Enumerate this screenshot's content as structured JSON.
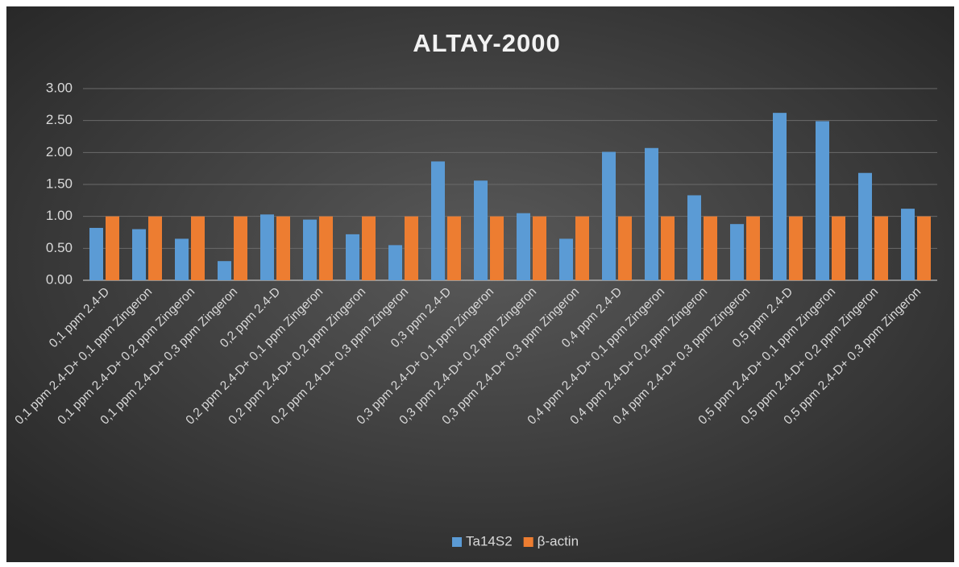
{
  "chart_data": {
    "type": "bar",
    "title": "ALTAY-2000",
    "categories": [
      "0,1 ppm 2.4-D",
      "0,1 ppm 2.4-D+ 0,1 ppm Zingeron",
      "0,1 ppm 2.4-D+ 0,2 ppm Zingeron",
      "0,1 ppm 2.4-D+ 0,3 ppm Zingeron",
      "0,2 ppm 2.4-D",
      "0,2 ppm 2.4-D+ 0,1 ppm Zingeron",
      "0,2 ppm 2.4-D+ 0,2 ppm Zingeron",
      "0,2 ppm 2.4-D+ 0,3 ppm Zingeron",
      "0,3 ppm 2.4-D",
      "0,3 ppm 2.4-D+ 0,1 ppm Zingeron",
      "0,3 ppm 2.4-D+ 0,2 ppm Zingeron",
      "0,3 ppm 2.4-D+ 0,3 ppm Zingeron",
      "0,4 ppm 2.4-D",
      "0,4 ppm 2.4-D+ 0,1 ppm Zingeron",
      "0,4 ppm 2.4-D+ 0,2 ppm Zingeron",
      "0,4 ppm 2.4-D+ 0,3 ppm Zingeron",
      "0,5 ppm 2.4-D",
      "0,5 ppm 2.4-D+ 0,1 ppm Zingeron",
      "0,5 ppm 2.4-D+ 0,2 ppm Zingeron",
      "0,5 ppm 2.4-D+ 0,3 ppm Zingeron"
    ],
    "series": [
      {
        "name": "Ta14S2",
        "color": "#5b9bd5",
        "values": [
          0.82,
          0.8,
          0.65,
          0.3,
          1.03,
          0.95,
          0.72,
          0.55,
          1.86,
          1.56,
          1.05,
          0.65,
          2.01,
          2.07,
          1.33,
          0.88,
          2.62,
          2.49,
          1.68,
          1.12
        ]
      },
      {
        "name": "β-actin",
        "color": "#ed7d31",
        "values": [
          1,
          1,
          1,
          1,
          1,
          1,
          1,
          1,
          1,
          1,
          1,
          1,
          1,
          1,
          1,
          1,
          1,
          1,
          1,
          1
        ]
      }
    ],
    "ylim": [
      0,
      3
    ],
    "yticks": [
      {
        "value": 0,
        "label": "0.00"
      },
      {
        "value": 0.5,
        "label": "0.50"
      },
      {
        "value": 1,
        "label": "1.00"
      },
      {
        "value": 1.5,
        "label": "1.50"
      },
      {
        "value": 2,
        "label": "2.00"
      },
      {
        "value": 2.5,
        "label": "2.50"
      },
      {
        "value": 3,
        "label": "3.00"
      }
    ],
    "grid": true,
    "legend": "bottom"
  }
}
